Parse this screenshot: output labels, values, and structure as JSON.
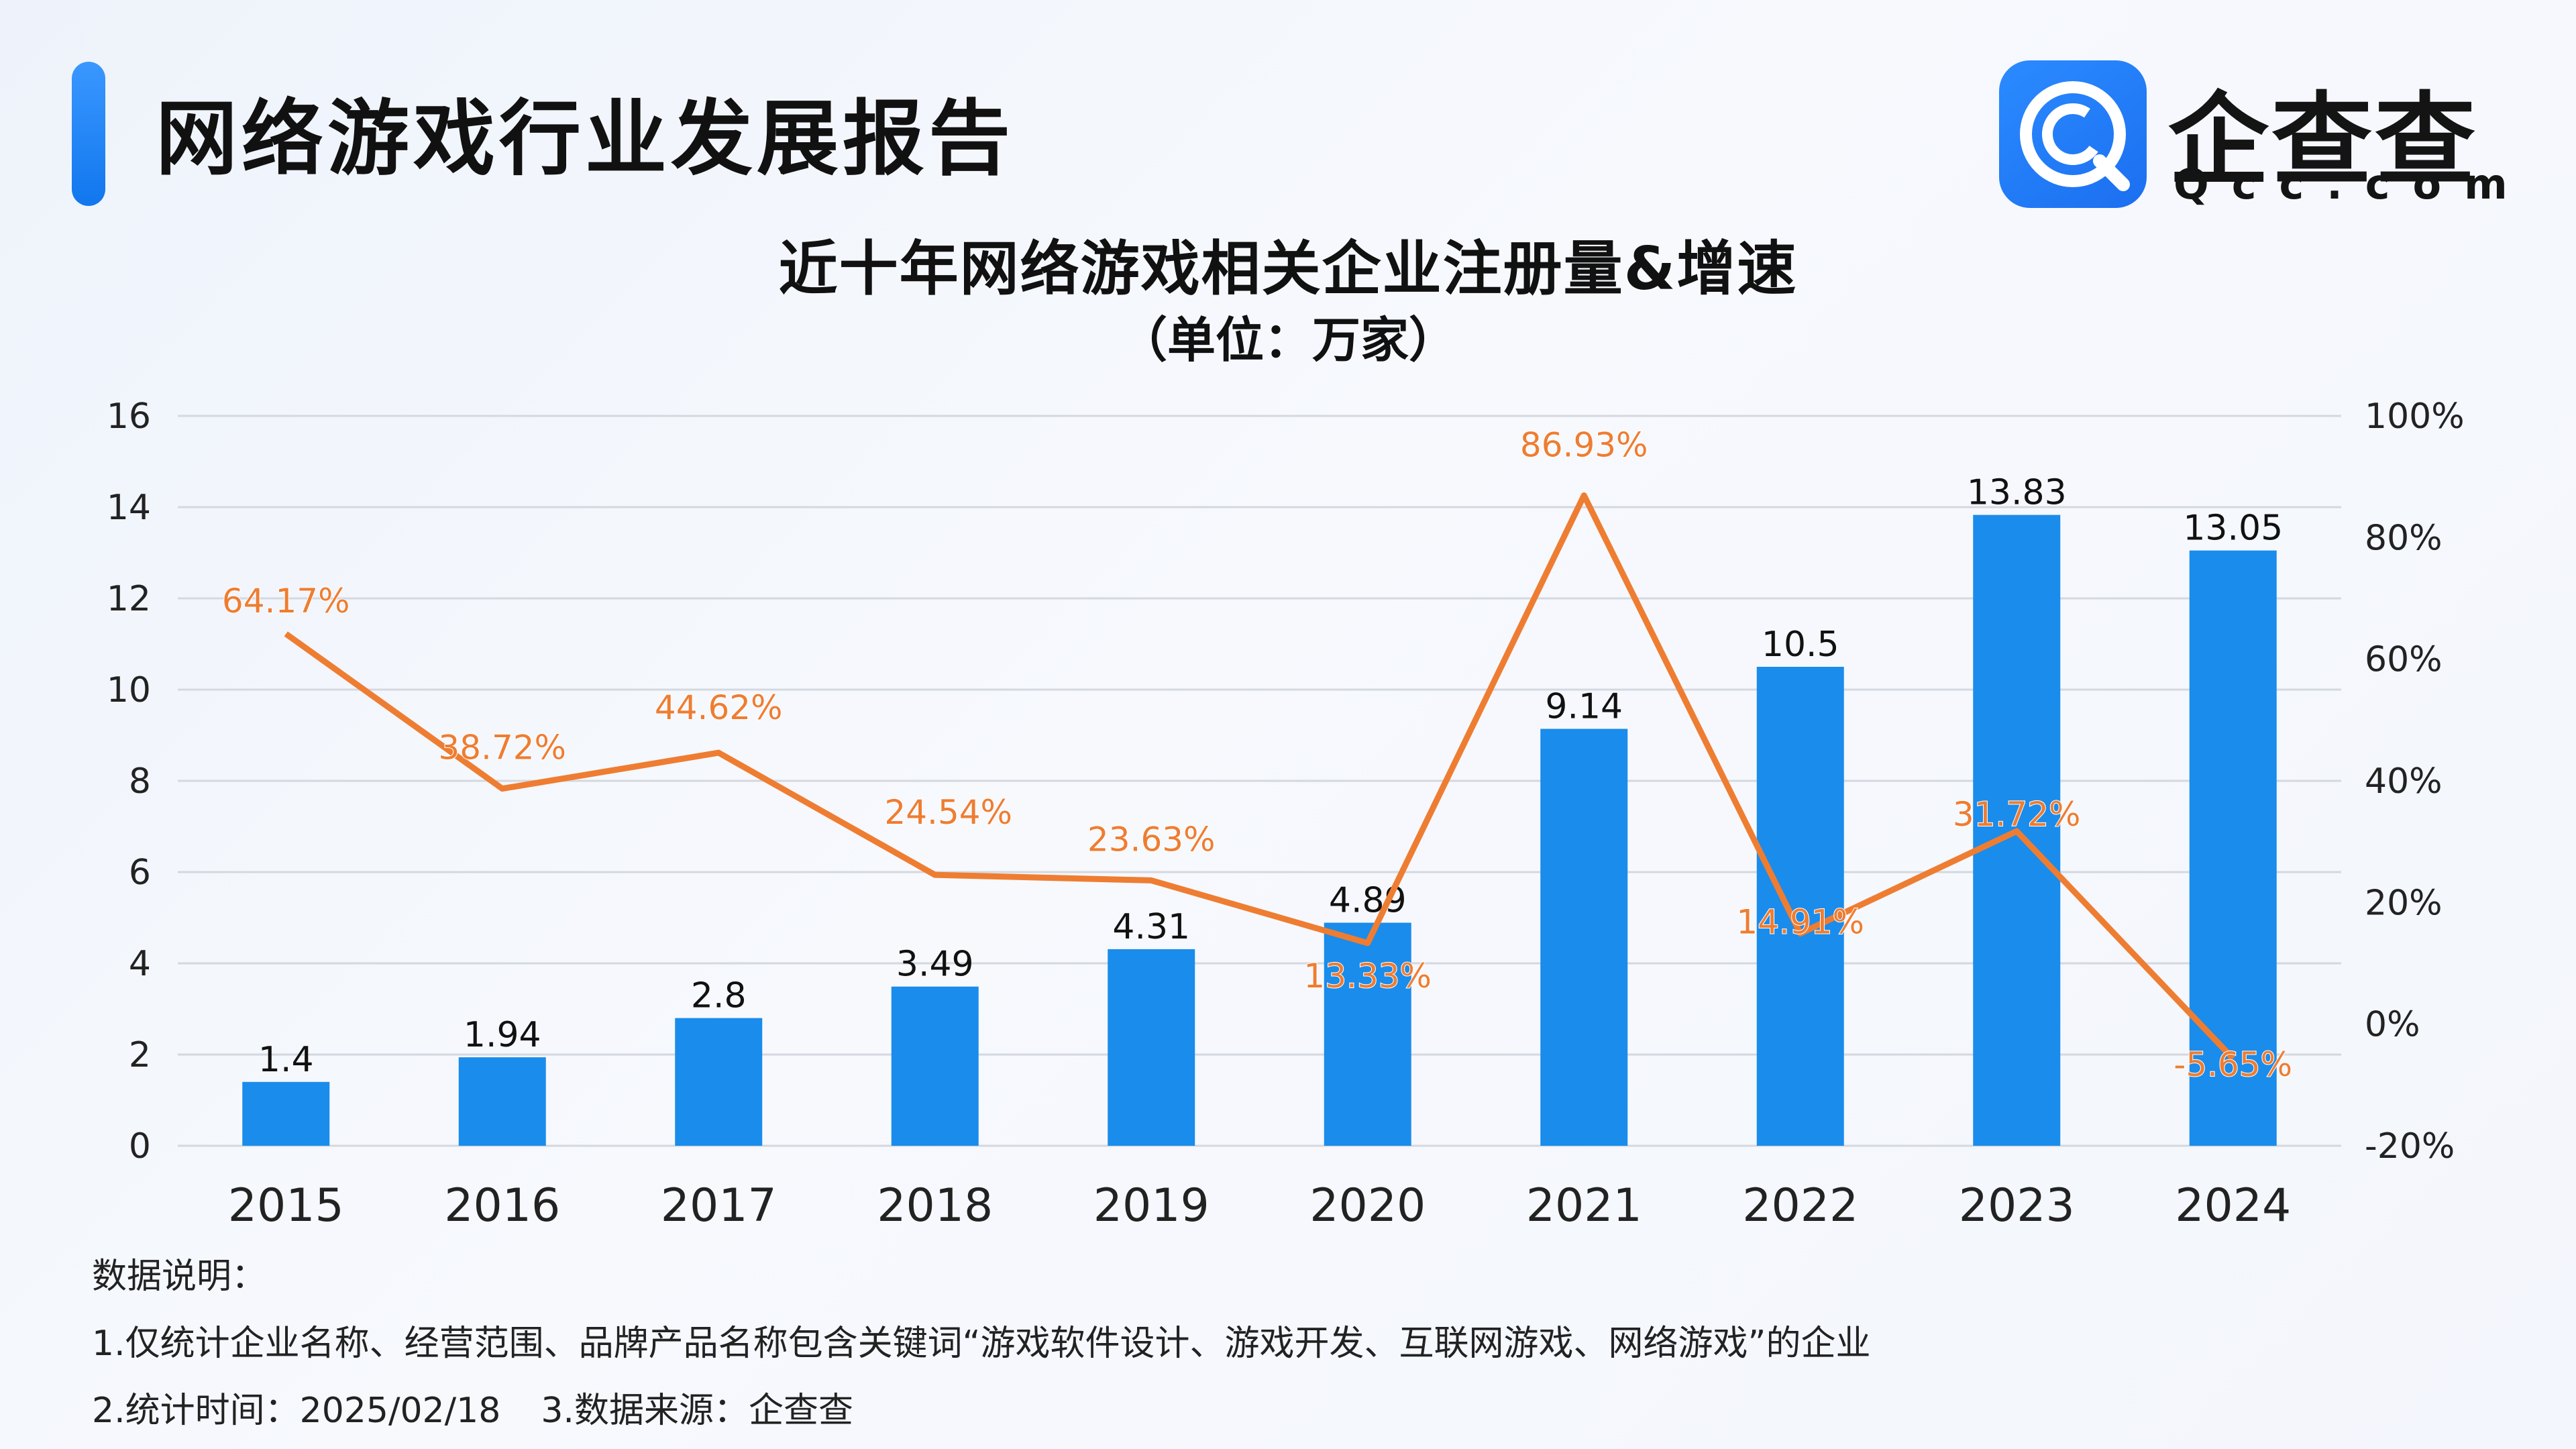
{
  "header": {
    "title": "网络游戏行业发展报告"
  },
  "logo": {
    "name": "企查查",
    "domain": "Qcc.com",
    "icon": "qcc-logo-icon"
  },
  "chart_data": {
    "type": "bar",
    "title": "近十年网络游戏相关企业注册量&增速",
    "subtitle": "（单位：万家）",
    "categories": [
      "2015",
      "2016",
      "2017",
      "2018",
      "2019",
      "2020",
      "2021",
      "2022",
      "2023",
      "2024"
    ],
    "series": [
      {
        "type": "bar",
        "axis": "left",
        "values": [
          1.4,
          1.94,
          2.8,
          3.49,
          4.31,
          4.89,
          9.14,
          10.5,
          13.83,
          13.05
        ],
        "labels": [
          "1.4",
          "1.94",
          "2.8",
          "3.49",
          "4.31",
          "4.89",
          "9.14",
          "10.5",
          "13.83",
          "13.05"
        ],
        "color": "#1a8ceb"
      },
      {
        "type": "line",
        "axis": "right",
        "values": [
          64.17,
          38.72,
          44.62,
          24.54,
          23.63,
          13.33,
          86.93,
          14.91,
          31.72,
          -5.65
        ],
        "labels": [
          "64.17%",
          "38.72%",
          "44.62%",
          "24.54%",
          "23.63%",
          "13.33%",
          "86.93%",
          "14.91%",
          "31.72%",
          "-5.65%"
        ],
        "color": "#ee7d32"
      }
    ],
    "y_left": {
      "min": 0,
      "max": 16,
      "ticks": [
        "0",
        "2",
        "4",
        "6",
        "8",
        "10",
        "12",
        "14",
        "16"
      ]
    },
    "y_right": {
      "min": -20,
      "max": 100,
      "ticks": [
        "-20%",
        "0%",
        "20%",
        "40%",
        "60%",
        "80%",
        "100%"
      ]
    },
    "grid": true,
    "legend": "none"
  },
  "notes": {
    "heading": "数据说明：",
    "line1": "1.仅统计企业名称、经营范围、品牌产品名称包含关键词“游戏软件设计、游戏开发、互联网游戏、网络游戏”的企业",
    "line2a": "2.统计时间：2025/02/18",
    "line2b": "3.数据来源：企查查"
  }
}
